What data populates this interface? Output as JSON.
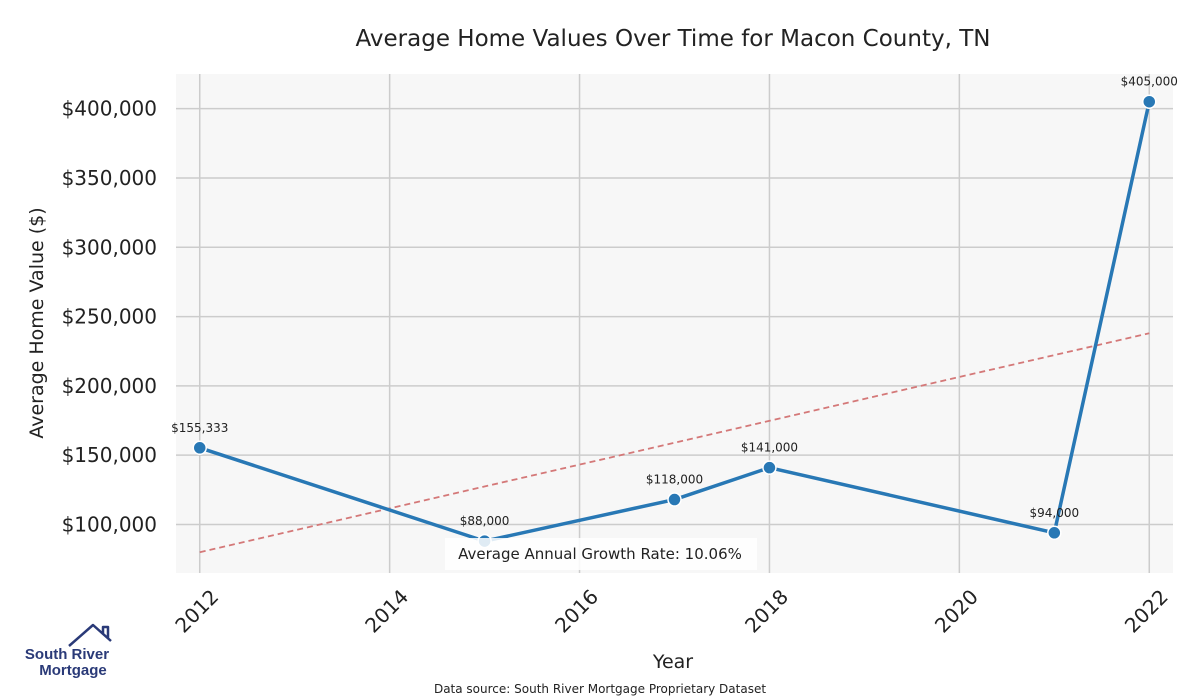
{
  "chart_data": {
    "type": "line",
    "title": "Average Home Values Over Time for Macon County, TN",
    "xlabel": "Year",
    "ylabel": "Average Home Value ($)",
    "xlim": [
      2011.75,
      2022.25
    ],
    "ylim": [
      65000,
      425000
    ],
    "x_ticks": [
      2012,
      2014,
      2016,
      2018,
      2020,
      2022
    ],
    "x_tick_labels": [
      "2012",
      "2014",
      "2016",
      "2018",
      "2020",
      "2022"
    ],
    "y_ticks": [
      100000,
      150000,
      200000,
      250000,
      300000,
      350000,
      400000
    ],
    "y_tick_labels": [
      "$100,000",
      "$150,000",
      "$200,000",
      "$250,000",
      "$300,000",
      "$350,000",
      "$400,000"
    ],
    "grid": true,
    "series": [
      {
        "name": "Average Home Value",
        "color": "#2878b5",
        "x": [
          2012,
          2015,
          2017,
          2018,
          2021,
          2022
        ],
        "values": [
          155333,
          88000,
          118000,
          141000,
          94000,
          405000
        ],
        "labels": [
          "$155,333",
          "$88,000",
          "$118,000",
          "$141,000",
          "$94,000",
          "$405,000"
        ]
      }
    ],
    "trend_line": {
      "name": "Trend",
      "color": "#d47878",
      "style": "dashed",
      "x": [
        2012,
        2022
      ],
      "values": [
        80000,
        238000
      ]
    },
    "annotation": "Average Annual Growth Rate: 10.06%",
    "source": "Data source: South River Mortgage Proprietary Dataset"
  },
  "logo": {
    "line1": "South River",
    "line2": "Mortgage",
    "color": "#2a3a78"
  }
}
